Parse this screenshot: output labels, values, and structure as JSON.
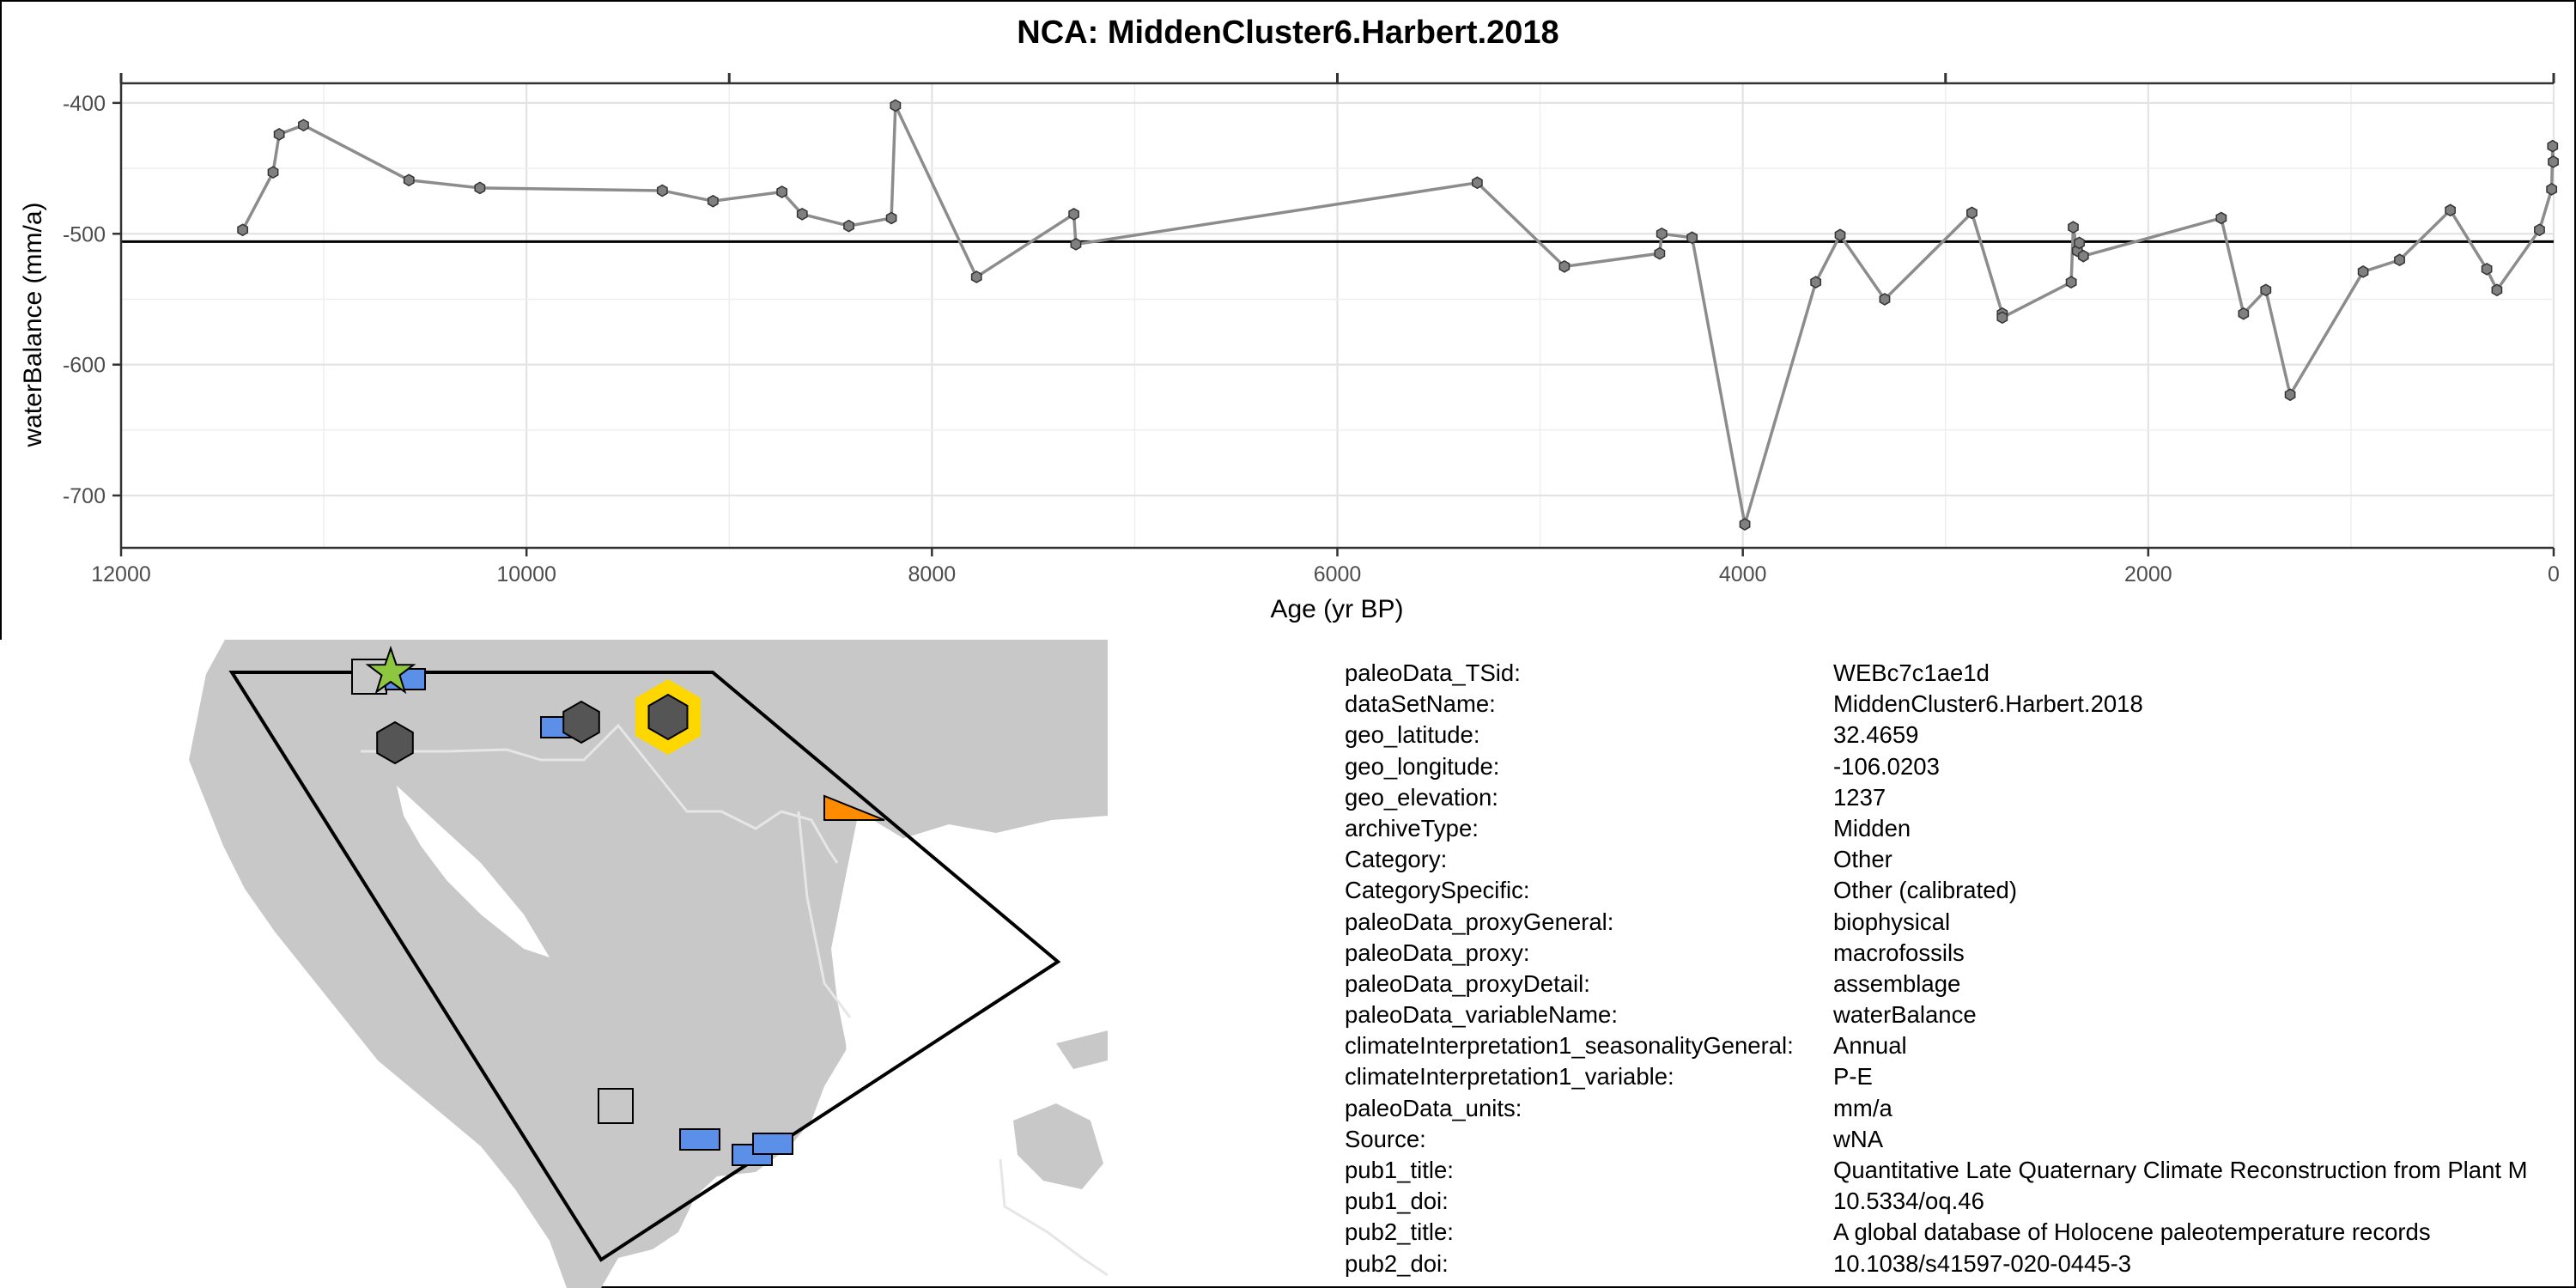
{
  "chart_data": {
    "type": "line",
    "title": "NCA: MiddenCluster6.Harbert.2018",
    "xlabel": "Age (yr BP)",
    "ylabel": "waterBalance (mm/a)",
    "xlim": [
      12000,
      0
    ],
    "ylim": [
      -740,
      -385
    ],
    "x_reversed": true,
    "x_ticks": [
      12000,
      10000,
      8000,
      6000,
      4000,
      2000,
      0
    ],
    "x_tick_labels": [
      "12000",
      "10000",
      "8000",
      "6000",
      "4000",
      "2000",
      "0"
    ],
    "y_ticks": [
      -400,
      -500,
      -600,
      -700
    ],
    "y_tick_labels": [
      "-400",
      "-500",
      "-600",
      "-700"
    ],
    "reference_line": -506,
    "grid": true,
    "series": [
      {
        "x": [
          11400,
          11250,
          11220,
          11100,
          10580,
          10230,
          9330,
          9080,
          8740,
          8640,
          8410,
          8200,
          8180,
          7780,
          7300,
          7290,
          5310,
          4880,
          4410,
          4400,
          4250,
          3990,
          3640,
          3520,
          3300,
          2870,
          2720,
          2720,
          2380,
          2370,
          2350,
          2340,
          2320,
          1640,
          1530,
          1420,
          1300,
          940,
          760,
          510,
          330,
          280,
          70,
          10,
          5,
          2
        ],
        "y": [
          -497,
          -453,
          -424,
          -417,
          -459,
          -465,
          -467,
          -475,
          -468,
          -485,
          -494,
          -488,
          -402,
          -533,
          -485,
          -508,
          -461,
          -525,
          -515,
          -500,
          -503,
          -722,
          -537,
          -501,
          -550,
          -484,
          -561,
          -564,
          -537,
          -495,
          -513,
          -507,
          -517,
          -488,
          -561,
          -543,
          -623,
          -529,
          -520,
          -482,
          -527,
          -543,
          -497,
          -466,
          -433,
          -445
        ]
      }
    ]
  },
  "map": {
    "sites": [
      {
        "shape": "square",
        "color": "#c8c8c8"
      },
      {
        "shape": "rect",
        "color": "#5b8fe8"
      },
      {
        "shape": "star",
        "color": "#8dc63f"
      },
      {
        "shape": "hexagon",
        "color": "#555555"
      },
      {
        "shape": "rect",
        "color": "#5b8fe8"
      },
      {
        "shape": "hexagon",
        "color": "#555555"
      },
      {
        "shape": "hexagon-highlight",
        "color": "#555555",
        "ring": "#ffd700"
      },
      {
        "shape": "triangle",
        "color": "#ff8c00"
      },
      {
        "shape": "square",
        "color": "#c8c8c8"
      },
      {
        "shape": "rect",
        "color": "#5b8fe8"
      },
      {
        "shape": "rect",
        "color": "#5b8fe8"
      },
      {
        "shape": "rect",
        "color": "#5b8fe8"
      }
    ],
    "land_color": "#c8c8c8",
    "boundary_color": "#e6e6e6"
  },
  "metadata": [
    {
      "key": "paleoData_TSid:",
      "value": "WEBc7c1ae1d"
    },
    {
      "key": "dataSetName:",
      "value": "MiddenCluster6.Harbert.2018"
    },
    {
      "key": "geo_latitude:",
      "value": "32.4659"
    },
    {
      "key": "geo_longitude:",
      "value": "-106.0203"
    },
    {
      "key": "geo_elevation:",
      "value": "1237"
    },
    {
      "key": "archiveType:",
      "value": "Midden"
    },
    {
      "key": "Category:",
      "value": "Other"
    },
    {
      "key": "CategorySpecific:",
      "value": "Other (calibrated)"
    },
    {
      "key": "paleoData_proxyGeneral:",
      "value": "biophysical"
    },
    {
      "key": "paleoData_proxy:",
      "value": "macrofossils"
    },
    {
      "key": "paleoData_proxyDetail:",
      "value": "assemblage"
    },
    {
      "key": "paleoData_variableName:",
      "value": "waterBalance"
    },
    {
      "key": "climateInterpretation1_seasonalityGeneral:",
      "value": "Annual"
    },
    {
      "key": "climateInterpretation1_variable:",
      "value": "P-E"
    },
    {
      "key": "paleoData_units:",
      "value": "mm/a"
    },
    {
      "key": "Source:",
      "value": "wNA"
    },
    {
      "key": "pub1_title:",
      "value": "Quantitative Late Quaternary Climate Reconstruction from Plant M"
    },
    {
      "key": "pub1_doi:",
      "value": "10.5334/oq.46"
    },
    {
      "key": "pub2_title:",
      "value": "A global database of Holocene paleotemperature records"
    },
    {
      "key": "pub2_doi:",
      "value": "10.1038/s41597-020-0445-3"
    }
  ]
}
